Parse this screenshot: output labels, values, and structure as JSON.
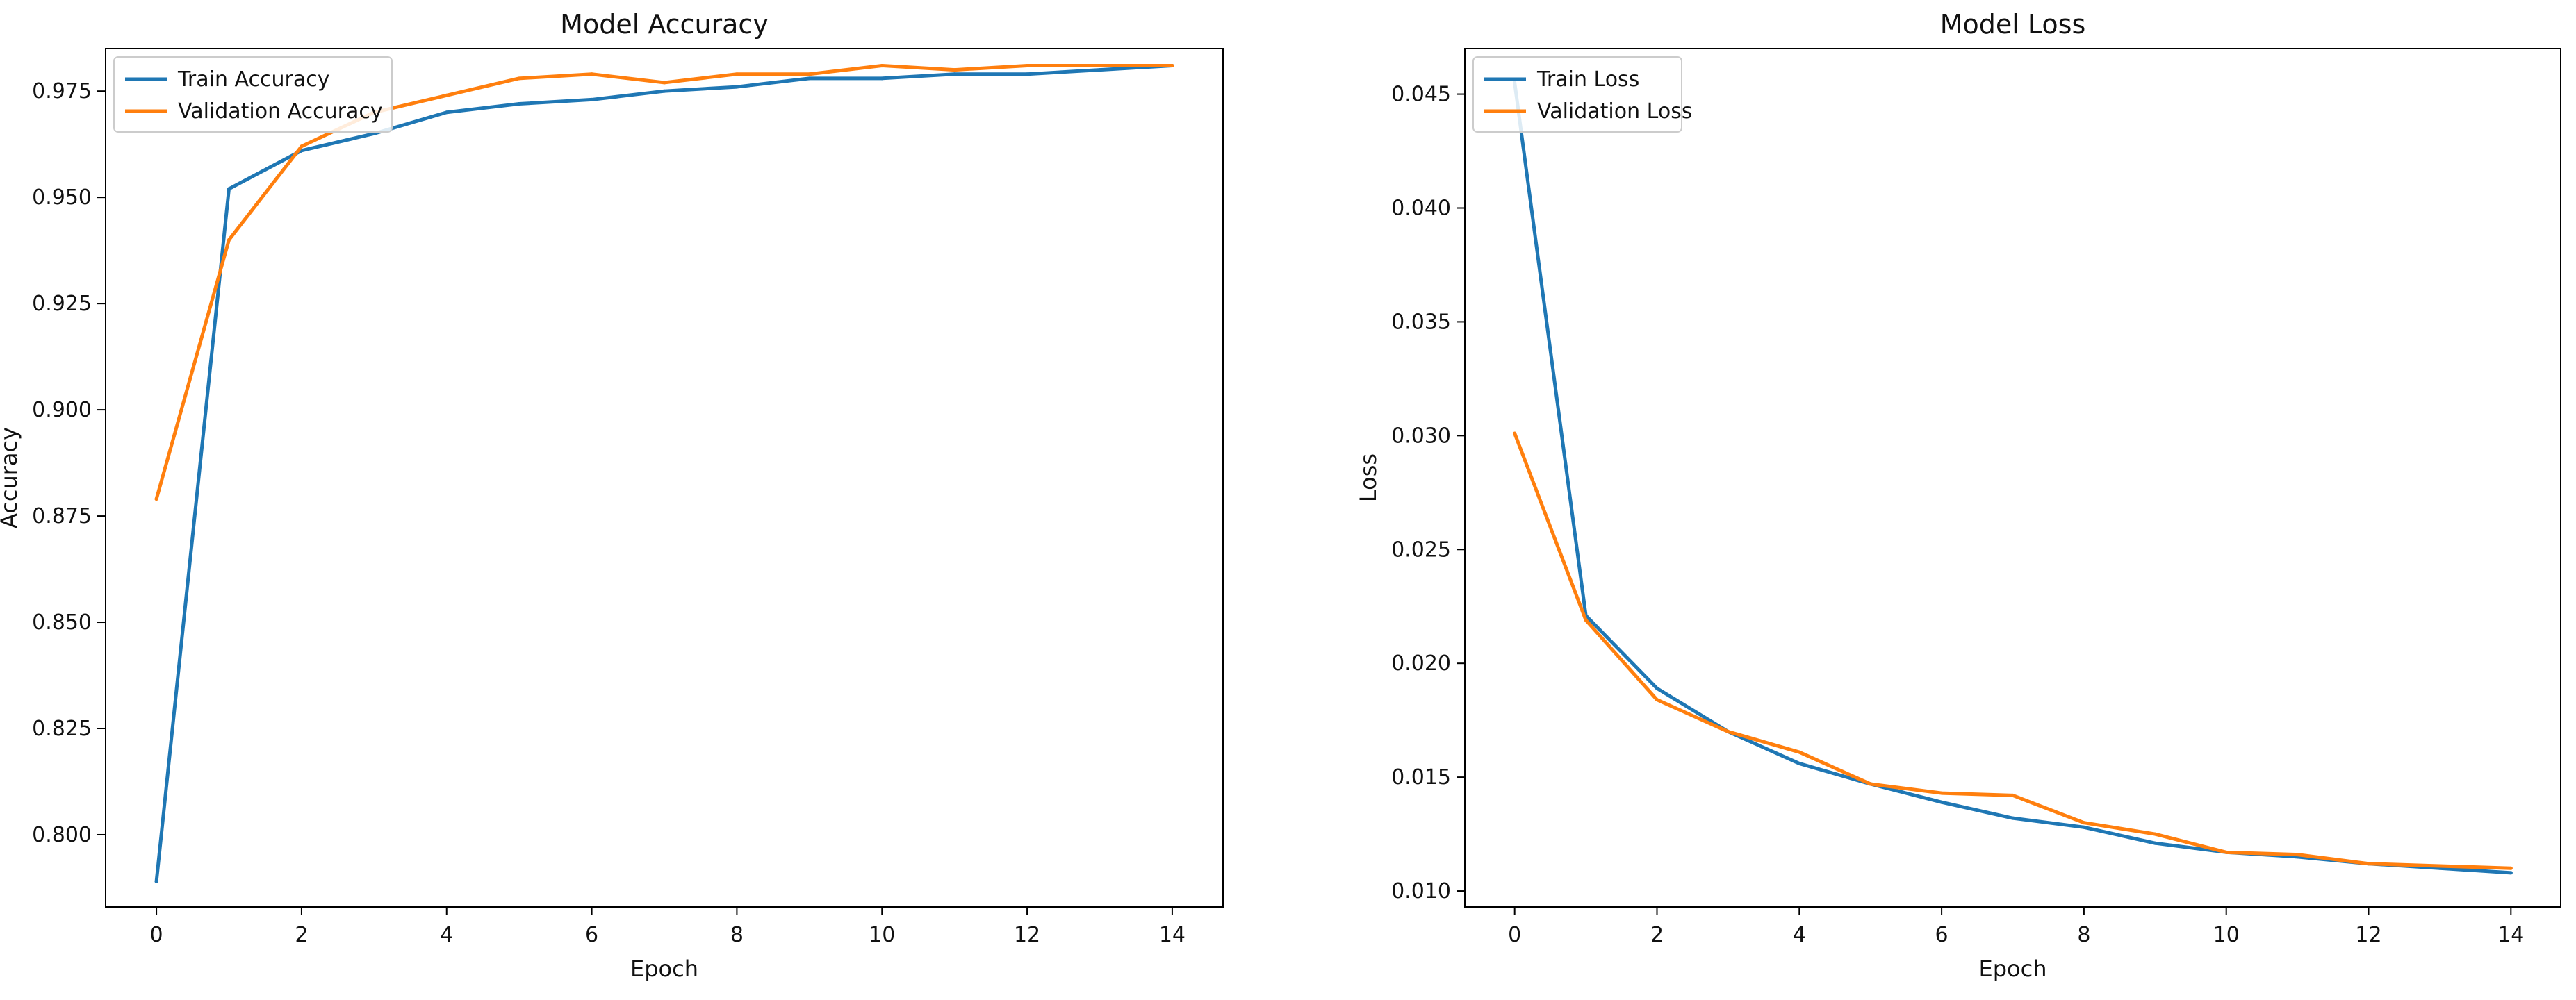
{
  "chart_data": [
    {
      "type": "line",
      "title": "Model Accuracy",
      "xlabel": "Epoch",
      "ylabel": "Accuracy",
      "xlim": [
        -0.7,
        14.7
      ],
      "ylim": [
        0.783,
        0.985
      ],
      "xticks": [
        0,
        2,
        4,
        6,
        8,
        10,
        12,
        14
      ],
      "yticks": [
        0.8,
        0.825,
        0.85,
        0.875,
        0.9,
        0.925,
        0.95,
        0.975
      ],
      "ytick_labels": [
        "0.800",
        "0.825",
        "0.850",
        "0.875",
        "0.900",
        "0.925",
        "0.950",
        "0.975"
      ],
      "grid": false,
      "legend": "top-left",
      "x": [
        0,
        1,
        2,
        3,
        4,
        5,
        6,
        7,
        8,
        9,
        10,
        11,
        12,
        13,
        14
      ],
      "series": [
        {
          "name": "Train Accuracy",
          "color": "#1f77b4",
          "values": [
            0.789,
            0.952,
            0.961,
            0.965,
            0.97,
            0.972,
            0.973,
            0.975,
            0.976,
            0.978,
            0.978,
            0.979,
            0.979,
            0.98,
            0.981
          ]
        },
        {
          "name": "Validation Accuracy",
          "color": "#ff7f0e",
          "values": [
            0.879,
            0.94,
            0.962,
            0.97,
            0.974,
            0.978,
            0.979,
            0.977,
            0.979,
            0.979,
            0.981,
            0.98,
            0.981,
            0.981,
            0.981
          ]
        }
      ]
    },
    {
      "type": "line",
      "title": "Model Loss",
      "xlabel": "Epoch",
      "ylabel": "Loss",
      "xlim": [
        -0.7,
        14.7
      ],
      "ylim": [
        0.0093,
        0.047
      ],
      "xticks": [
        0,
        2,
        4,
        6,
        8,
        10,
        12,
        14
      ],
      "yticks": [
        0.01,
        0.015,
        0.02,
        0.025,
        0.03,
        0.035,
        0.04,
        0.045
      ],
      "ytick_labels": [
        "0.010",
        "0.015",
        "0.020",
        "0.025",
        "0.030",
        "0.035",
        "0.040",
        "0.045"
      ],
      "grid": false,
      "legend": "top-left",
      "x": [
        0,
        1,
        2,
        3,
        4,
        5,
        6,
        7,
        8,
        9,
        10,
        11,
        12,
        13,
        14
      ],
      "series": [
        {
          "name": "Train Loss",
          "color": "#1f77b4",
          "values": [
            0.0455,
            0.0221,
            0.0189,
            0.017,
            0.0156,
            0.0147,
            0.0139,
            0.0132,
            0.0128,
            0.0121,
            0.0117,
            0.0115,
            0.0112,
            0.011,
            0.0108
          ]
        },
        {
          "name": "Validation Loss",
          "color": "#ff7f0e",
          "values": [
            0.0301,
            0.0219,
            0.0184,
            0.017,
            0.0161,
            0.0147,
            0.0143,
            0.0142,
            0.013,
            0.0125,
            0.0117,
            0.0116,
            0.0112,
            0.0111,
            0.011
          ]
        }
      ]
    }
  ]
}
